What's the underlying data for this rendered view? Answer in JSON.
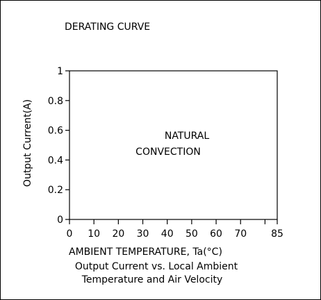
{
  "chart_data": {
    "type": "line",
    "title": "DERATING CURVE",
    "xlabel": "AMBIENT TEMPERATURE, Ta(°C)",
    "ylabel": "Output Current(A)",
    "caption_lines": [
      "Output Current vs. Local Ambient",
      "Temperature and Air Velocity"
    ],
    "annotation_lines": [
      "NATURAL",
      "CONVECTION"
    ],
    "x_ticks": [
      0,
      10,
      20,
      30,
      40,
      50,
      60,
      70,
      85
    ],
    "x_minor_ticks": [
      80
    ],
    "y_ticks": [
      {
        "value": 0,
        "label": "0"
      },
      {
        "value": 0.2,
        "label": "0.2"
      },
      {
        "value": 0.4,
        "label": "0.4"
      },
      {
        "value": 0.6,
        "label": "0.6"
      },
      {
        "value": 0.8,
        "label": "0.8"
      },
      {
        "value": 1,
        "label": "1"
      }
    ],
    "xlim": [
      0,
      85
    ],
    "ylim": [
      0,
      1
    ],
    "grid": false,
    "series": []
  },
  "colors": {
    "axis": "#000000",
    "text": "#000000",
    "background": "#ffffff"
  }
}
